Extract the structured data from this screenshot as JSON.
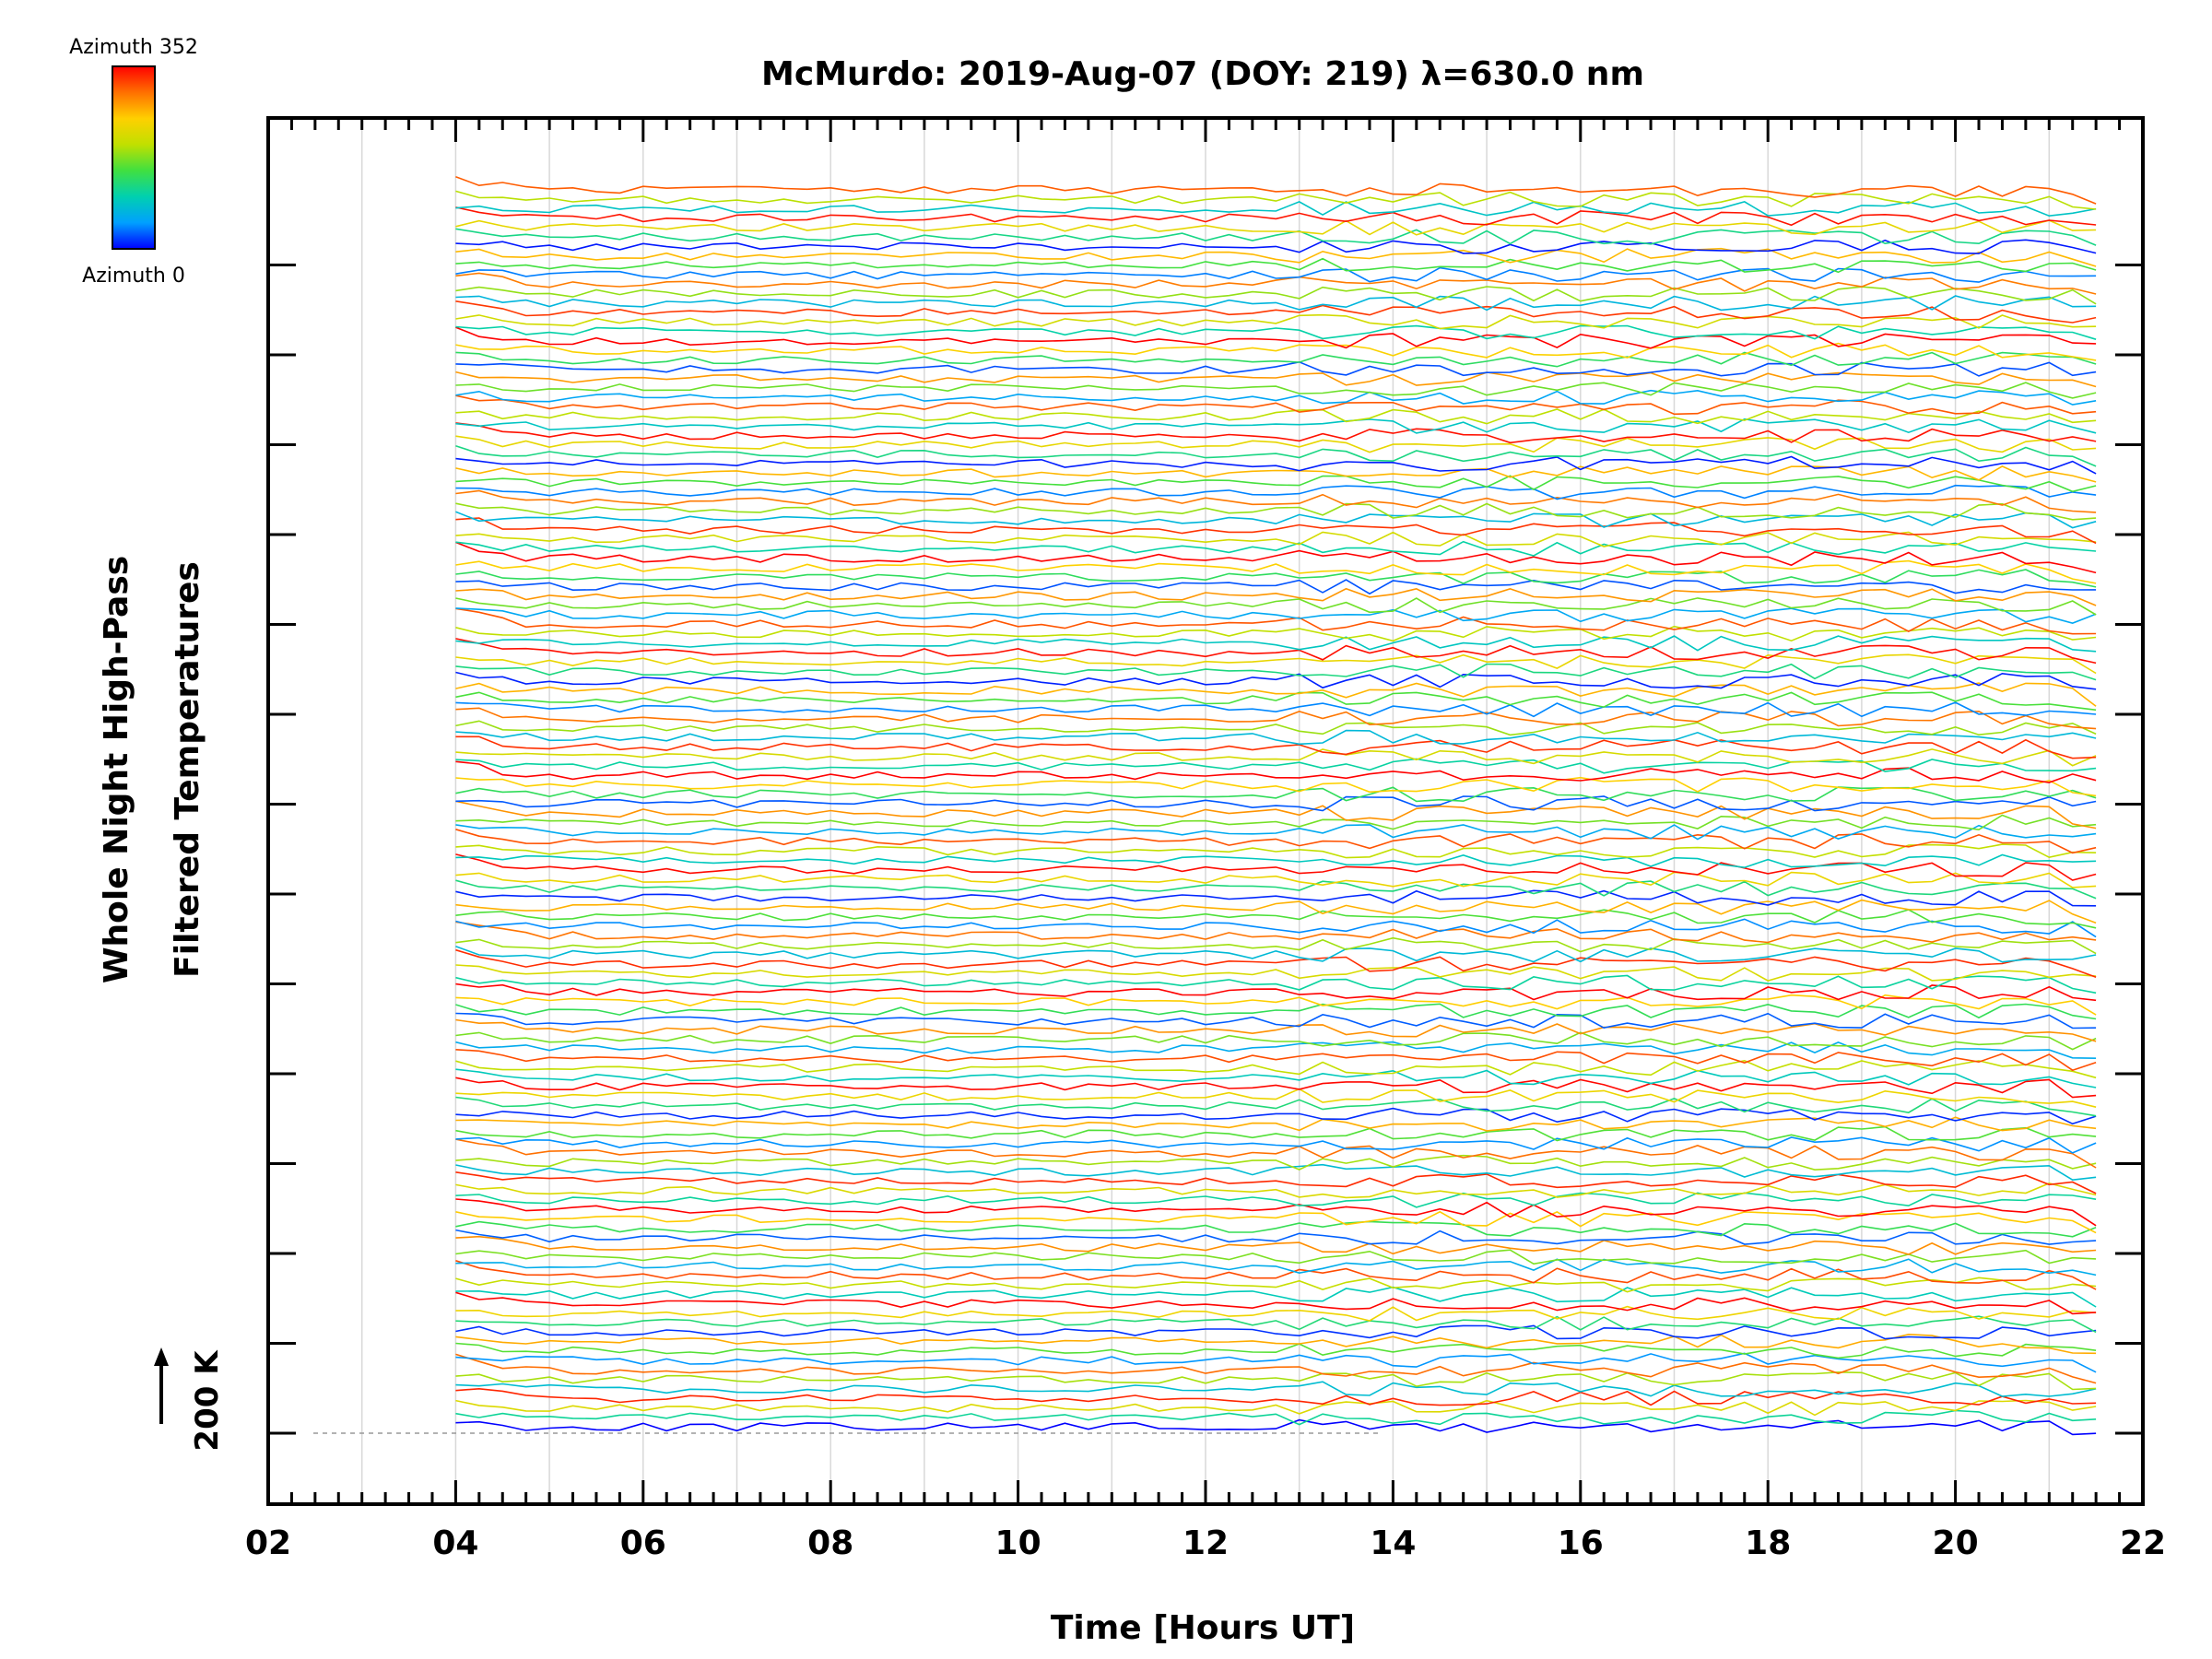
{
  "chart_data": {
    "type": "line",
    "title": "McMurdo: 2019-Aug-07 (DOY: 219) λ=630.0 nm",
    "xlabel": "Time [Hours UT]",
    "ylabel_line1": "Whole Night High-Pass",
    "ylabel_line2": "Filtered Temperatures",
    "xlim": [
      2,
      22
    ],
    "x_ticks": [
      "02",
      "04",
      "06",
      "08",
      "10",
      "12",
      "14",
      "16",
      "18",
      "20",
      "22"
    ],
    "data_start_hour": 4.0,
    "data_end_hour": 21.7,
    "n_traces": 132,
    "trace_offset_scale": "200 K",
    "scale_arrow_label": "200 K",
    "colorbar": {
      "top_label": "Azimuth 352",
      "bottom_label": "Azimuth 0",
      "colors": [
        "#0000ff",
        "#00a0ff",
        "#00d0b0",
        "#40e040",
        "#c0e000",
        "#ffd000",
        "#ff7000",
        "#ff0000"
      ]
    }
  }
}
